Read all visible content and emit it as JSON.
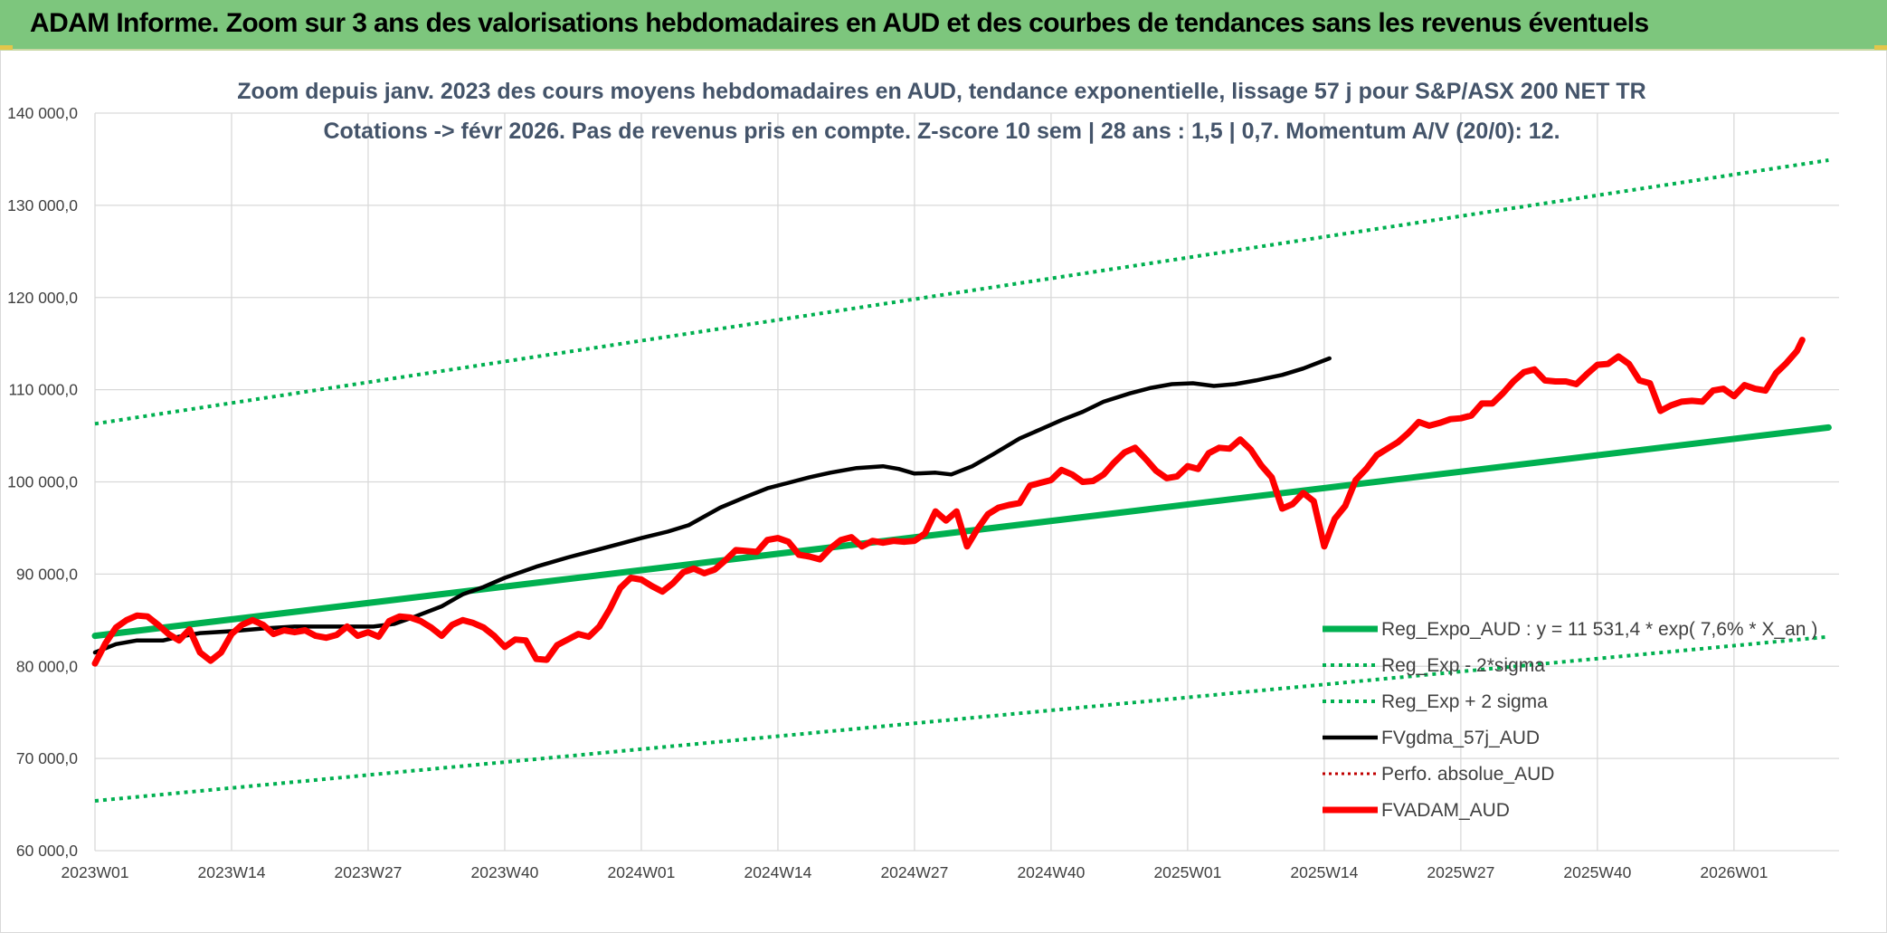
{
  "banner": {
    "title": "ADAM Informe. Zoom sur 3 ans des valorisations hebdomadaires en AUD et des courbes de tendances sans les revenus éventuels"
  },
  "colors": {
    "banner_bg": "#7dc67d",
    "trend": "#00b050",
    "fv_gdma": "#000000",
    "fvadam": "#ff0000",
    "perf": "#c00000"
  },
  "chart_data": {
    "type": "line",
    "title": [
      "Zoom depuis janv. 2023 des cours moyens hebdomadaires en AUD, tendance exponentielle, lissage 57 j pour S&P/ASX 200 NET TR",
      "Cotations -> févr 2026. Pas de revenus pris en compte. Z-score 10 sem | 28 ans : 1,5 | 0,7. Momentum A/V (20/0): 12."
    ],
    "ylim": [
      60000,
      140000
    ],
    "y_ticks": [
      "140 000,0",
      "130 000,0",
      "120 000,0",
      "110 000,0",
      "100 000,0",
      "90 000,0",
      "80 000,0",
      "70 000,0",
      "60 000,0"
    ],
    "x_ticks": [
      "2023W01",
      "2023W14",
      "2023W27",
      "2023W40",
      "2024W01",
      "2024W14",
      "2024W27",
      "2024W40",
      "2025W01",
      "2025W14",
      "2025W27",
      "2025W40",
      "2026W01"
    ],
    "n_weeks": 166,
    "grid": true,
    "legend_position": "bottom-right",
    "series": [
      {
        "name": "Reg_Expo_AUD : y = 11 531,4 * exp( 7,6% * X_an )",
        "style": "solid-thick",
        "color": "#00b050",
        "anchors": [
          [
            0,
            83300
          ],
          [
            165,
            105900
          ]
        ]
      },
      {
        "name": "Reg_Exp - 2*sigma",
        "style": "dotted",
        "color": "#00b050",
        "anchors": [
          [
            0,
            65400
          ],
          [
            165,
            83200
          ]
        ]
      },
      {
        "name": "Reg_Exp + 2 sigma",
        "style": "dotted",
        "color": "#00b050",
        "anchors": [
          [
            0,
            106300
          ],
          [
            165,
            134900
          ]
        ]
      },
      {
        "name": "FVgdma_57j_AUD",
        "style": "solid",
        "color": "#000000",
        "anchors": [
          [
            0,
            81500
          ],
          [
            4,
            82400
          ],
          [
            8,
            82800
          ],
          [
            13,
            82800
          ],
          [
            16,
            83200
          ],
          [
            20,
            83600
          ],
          [
            26,
            83800
          ],
          [
            32,
            84100
          ],
          [
            38,
            84300
          ],
          [
            43,
            84300
          ],
          [
            48,
            84300
          ],
          [
            53,
            84300
          ],
          [
            57,
            84600
          ],
          [
            61,
            85400
          ],
          [
            66,
            86500
          ],
          [
            70,
            87800
          ],
          [
            74,
            88600
          ],
          [
            78,
            89600
          ],
          [
            84,
            90800
          ],
          [
            90,
            91800
          ],
          [
            96,
            92700
          ],
          [
            100,
            93300
          ],
          [
            104,
            93900
          ],
          [
            109,
            94600
          ],
          [
            113,
            95300
          ],
          [
            119,
            97200
          ],
          [
            124,
            98400
          ],
          [
            128,
            99300
          ],
          [
            132,
            99900
          ],
          [
            136,
            100500
          ],
          [
            140,
            101000
          ],
          [
            145,
            101500
          ],
          [
            150,
            101700
          ],
          [
            153,
            101400
          ],
          [
            156,
            100900
          ],
          [
            160,
            101000
          ],
          [
            163,
            100800
          ],
          [
            167,
            101700
          ],
          [
            171,
            103000
          ],
          [
            176,
            104700
          ],
          [
            180,
            105700
          ],
          [
            184,
            106700
          ],
          [
            188,
            107600
          ],
          [
            192,
            108700
          ],
          [
            197,
            109600
          ],
          [
            201,
            110200
          ],
          [
            205,
            110600
          ],
          [
            209,
            110700
          ],
          [
            213,
            110400
          ],
          [
            217,
            110600
          ],
          [
            221,
            111000
          ],
          [
            226,
            111600
          ],
          [
            230,
            112300
          ],
          [
            235,
            113400
          ]
        ]
      },
      {
        "name": "Perfo. absolue_AUD",
        "style": "dotted-thin",
        "color": "#c00000",
        "anchors": []
      },
      {
        "name": "FVADAM_AUD",
        "style": "solid-thick",
        "color": "#ff0000",
        "anchors": [
          [
            0,
            80300
          ],
          [
            2,
            82500
          ],
          [
            4,
            84200
          ],
          [
            6,
            85000
          ],
          [
            8,
            85500
          ],
          [
            10,
            85400
          ],
          [
            12,
            84500
          ],
          [
            14,
            83500
          ],
          [
            16,
            82800
          ],
          [
            18,
            84000
          ],
          [
            20,
            81500
          ],
          [
            22,
            80600
          ],
          [
            24,
            81500
          ],
          [
            26,
            83500
          ],
          [
            28,
            84500
          ],
          [
            30,
            85000
          ],
          [
            32,
            84500
          ],
          [
            34,
            83500
          ],
          [
            36,
            83900
          ],
          [
            38,
            83700
          ],
          [
            40,
            83900
          ],
          [
            42,
            83300
          ],
          [
            44,
            83100
          ],
          [
            46,
            83400
          ],
          [
            48,
            84300
          ],
          [
            50,
            83300
          ],
          [
            52,
            83700
          ],
          [
            54,
            83200
          ],
          [
            56,
            84900
          ],
          [
            58,
            85400
          ],
          [
            60,
            85300
          ],
          [
            62,
            84900
          ],
          [
            64,
            84200
          ],
          [
            66,
            83300
          ],
          [
            68,
            84500
          ],
          [
            70,
            85000
          ],
          [
            72,
            84700
          ],
          [
            74,
            84200
          ],
          [
            76,
            83300
          ],
          [
            78,
            82100
          ],
          [
            80,
            82900
          ],
          [
            82,
            82800
          ],
          [
            84,
            80800
          ],
          [
            86,
            80700
          ],
          [
            88,
            82300
          ],
          [
            90,
            82900
          ],
          [
            92,
            83500
          ],
          [
            94,
            83200
          ],
          [
            96,
            84300
          ],
          [
            98,
            86200
          ],
          [
            100,
            88500
          ],
          [
            102,
            89600
          ],
          [
            104,
            89400
          ],
          [
            106,
            88700
          ],
          [
            108,
            88100
          ],
          [
            110,
            89000
          ],
          [
            112,
            90200
          ],
          [
            114,
            90600
          ],
          [
            116,
            90100
          ],
          [
            118,
            90500
          ],
          [
            120,
            91500
          ],
          [
            122,
            92600
          ],
          [
            124,
            92500
          ],
          [
            126,
            92400
          ],
          [
            128,
            93700
          ],
          [
            130,
            93900
          ],
          [
            132,
            93500
          ],
          [
            134,
            92100
          ],
          [
            136,
            91900
          ],
          [
            138,
            91600
          ],
          [
            140,
            92800
          ],
          [
            142,
            93700
          ],
          [
            144,
            94000
          ],
          [
            146,
            93000
          ],
          [
            148,
            93600
          ],
          [
            150,
            93400
          ],
          [
            152,
            93600
          ],
          [
            154,
            93500
          ],
          [
            156,
            93600
          ],
          [
            158,
            94400
          ],
          [
            160,
            96800
          ],
          [
            162,
            95800
          ],
          [
            164,
            96800
          ],
          [
            166,
            93000
          ],
          [
            168,
            94900
          ],
          [
            170,
            96500
          ],
          [
            172,
            97200
          ],
          [
            174,
            97500
          ],
          [
            176,
            97700
          ],
          [
            178,
            99600
          ],
          [
            180,
            99900
          ],
          [
            182,
            100200
          ],
          [
            184,
            101300
          ],
          [
            186,
            100800
          ],
          [
            188,
            100000
          ],
          [
            190,
            100100
          ],
          [
            192,
            100800
          ],
          [
            194,
            102100
          ],
          [
            196,
            103200
          ],
          [
            198,
            103700
          ],
          [
            200,
            102500
          ],
          [
            202,
            101200
          ],
          [
            204,
            100400
          ],
          [
            206,
            100600
          ],
          [
            208,
            101700
          ],
          [
            210,
            101400
          ],
          [
            212,
            103100
          ],
          [
            214,
            103700
          ],
          [
            216,
            103600
          ],
          [
            218,
            104600
          ],
          [
            220,
            103500
          ],
          [
            222,
            101800
          ],
          [
            224,
            100500
          ],
          [
            226,
            97100
          ],
          [
            228,
            97600
          ],
          [
            230,
            98800
          ],
          [
            232,
            97900
          ],
          [
            234,
            93000
          ],
          [
            236,
            96000
          ],
          [
            238,
            97400
          ],
          [
            240,
            100200
          ],
          [
            242,
            101400
          ],
          [
            244,
            102900
          ],
          [
            246,
            103600
          ],
          [
            248,
            104300
          ],
          [
            250,
            105300
          ],
          [
            252,
            106500
          ],
          [
            254,
            106100
          ],
          [
            256,
            106400
          ],
          [
            258,
            106800
          ],
          [
            260,
            106900
          ],
          [
            262,
            107200
          ],
          [
            264,
            108500
          ],
          [
            266,
            108500
          ],
          [
            268,
            109600
          ],
          [
            270,
            110900
          ],
          [
            272,
            111900
          ],
          [
            274,
            112200
          ],
          [
            276,
            111000
          ],
          [
            278,
            110900
          ],
          [
            280,
            110900
          ],
          [
            282,
            110600
          ],
          [
            284,
            111700
          ],
          [
            286,
            112700
          ],
          [
            288,
            112800
          ],
          [
            290,
            113600
          ],
          [
            292,
            112800
          ],
          [
            294,
            111000
          ],
          [
            296,
            110700
          ],
          [
            298,
            107700
          ],
          [
            300,
            108300
          ],
          [
            302,
            108700
          ],
          [
            304,
            108800
          ],
          [
            306,
            108700
          ],
          [
            308,
            109900
          ],
          [
            310,
            110100
          ],
          [
            312,
            109300
          ],
          [
            314,
            110500
          ],
          [
            316,
            110100
          ],
          [
            318,
            109900
          ],
          [
            320,
            111800
          ],
          [
            322,
            112900
          ],
          [
            324,
            114200
          ],
          [
            325,
            115400
          ]
        ]
      }
    ]
  }
}
